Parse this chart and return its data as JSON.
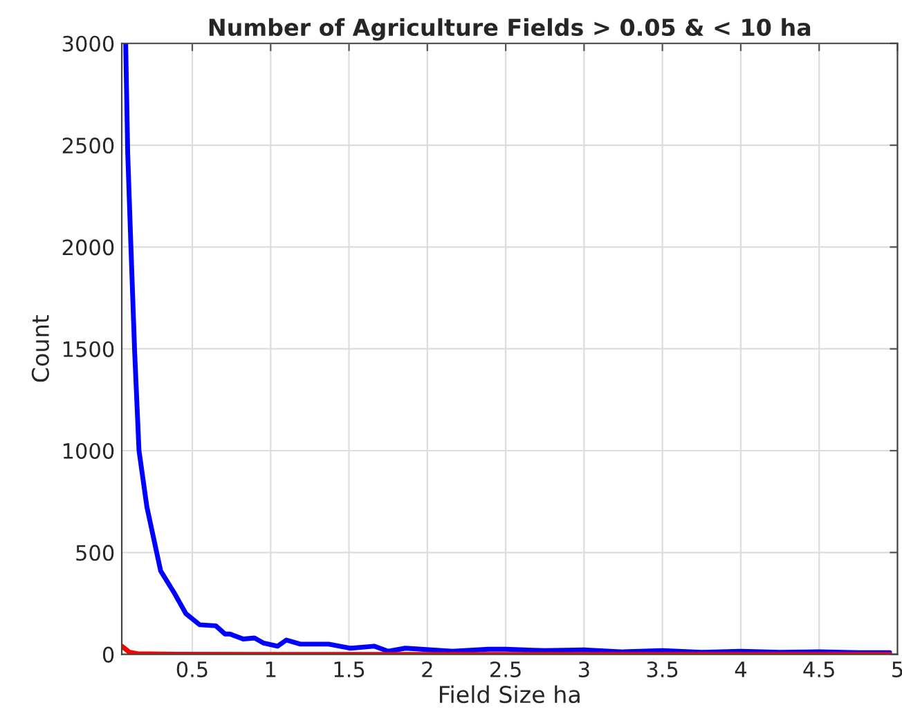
{
  "chart_data": {
    "type": "line",
    "title": "Number of Agriculture Fields > 0.05 & < 10 ha",
    "xlabel": "Field Size ha",
    "ylabel": "Count",
    "xlim": [
      0.05,
      5
    ],
    "ylim": [
      0,
      3000
    ],
    "xticks": [
      0.5,
      1,
      1.5,
      2,
      2.5,
      3,
      3.5,
      4,
      4.5,
      5
    ],
    "yticks": [
      0,
      500,
      1000,
      1500,
      2000,
      2500,
      3000
    ],
    "grid": true,
    "series": [
      {
        "color": "#0000ff",
        "x": [
          0.075,
          0.088,
          0.108,
          0.132,
          0.16,
          0.21,
          0.298,
          0.386,
          0.459,
          0.547,
          0.65,
          0.708,
          0.74,
          0.825,
          0.897,
          0.956,
          1.044,
          1.1,
          1.19,
          1.37,
          1.51,
          1.66,
          1.75,
          1.86,
          2.16,
          2.39,
          2.5,
          2.75,
          3.0,
          3.25,
          3.5,
          3.75,
          4.0,
          4.25,
          4.5,
          4.75,
          4.95
        ],
        "values": [
          3000,
          2460,
          2010,
          1490,
          1000,
          725,
          410,
          300,
          200,
          145,
          140,
          100,
          100,
          75,
          80,
          55,
          40,
          70,
          50,
          50,
          30,
          40,
          15,
          30,
          15,
          25,
          25,
          18,
          22,
          12,
          18,
          10,
          15,
          10,
          12,
          8,
          8
        ]
      },
      {
        "color": "#ff0000",
        "x": [
          0.05,
          0.1,
          0.15,
          0.3,
          1,
          2,
          3,
          4,
          4.95
        ],
        "values": [
          40,
          10,
          3,
          1,
          0,
          0,
          0,
          0,
          0
        ]
      }
    ]
  }
}
